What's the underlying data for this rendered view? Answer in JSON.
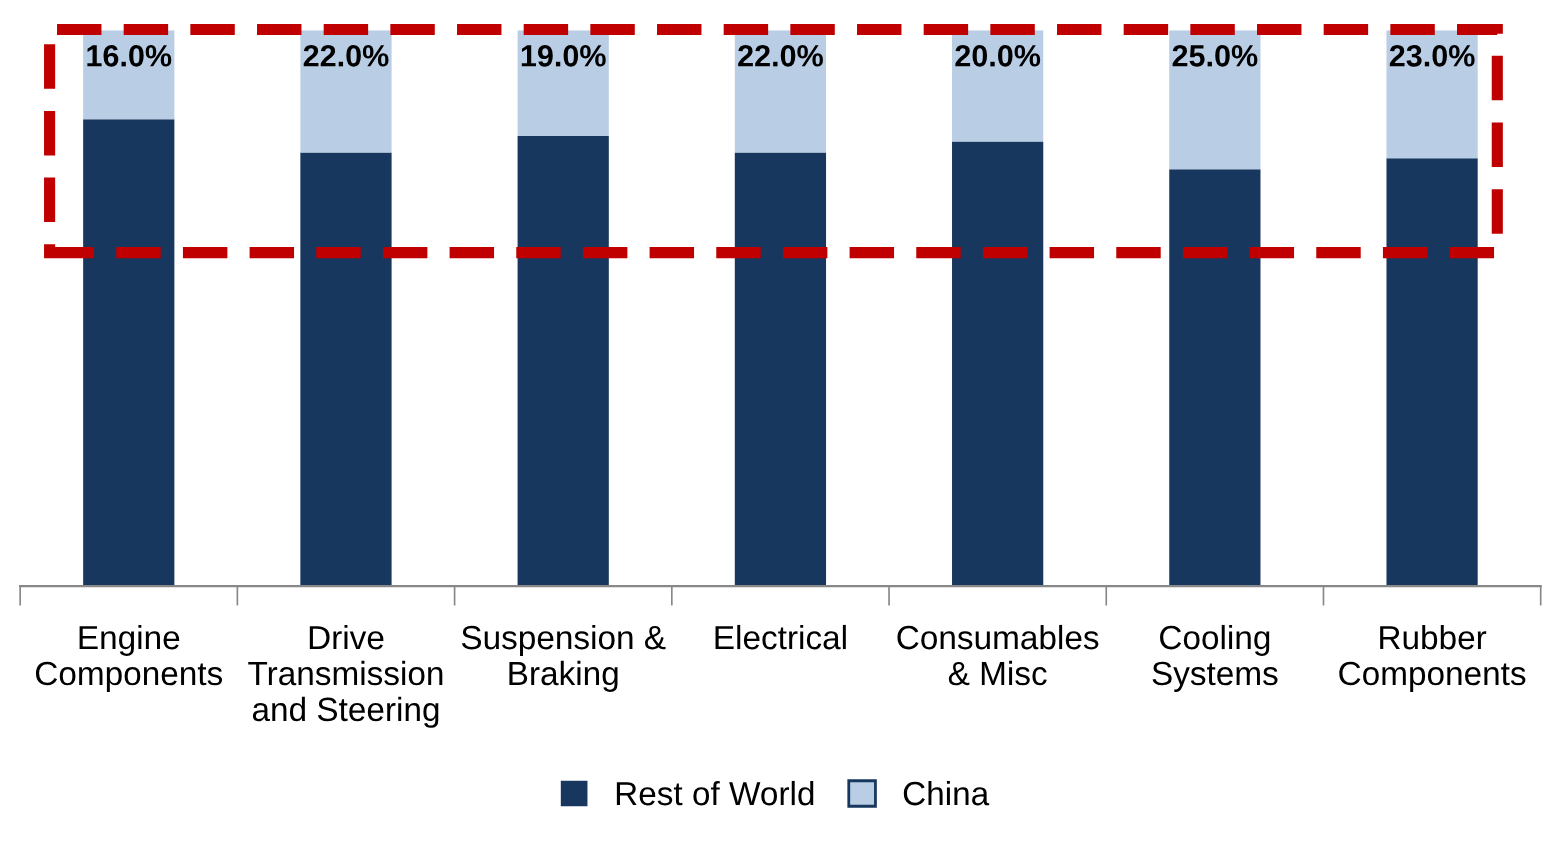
{
  "chart_data": {
    "type": "bar",
    "stacked": true,
    "categories": [
      "Engine\nComponents",
      "Drive\nTransmission\nand Steering",
      "Suspension &\nBraking",
      "Electrical",
      "Consumables\n& Misc",
      "Cooling\nSystems",
      "Rubber\nComponents"
    ],
    "series": [
      {
        "name": "Rest of World",
        "color": "#17375e",
        "values": [
          84,
          78,
          81,
          78,
          80,
          75,
          77
        ]
      },
      {
        "name": "China",
        "color": "#b9cde5",
        "values": [
          16,
          22,
          19,
          22,
          20,
          25,
          23
        ],
        "value_labels": [
          "16.0%",
          "22.0%",
          "19.0%",
          "22.0%",
          "20.0%",
          "25.0%",
          "23.0%"
        ]
      }
    ],
    "ylim": [
      0,
      100
    ],
    "tick_labels": "x",
    "legend": "bottom",
    "grid": false
  }
}
